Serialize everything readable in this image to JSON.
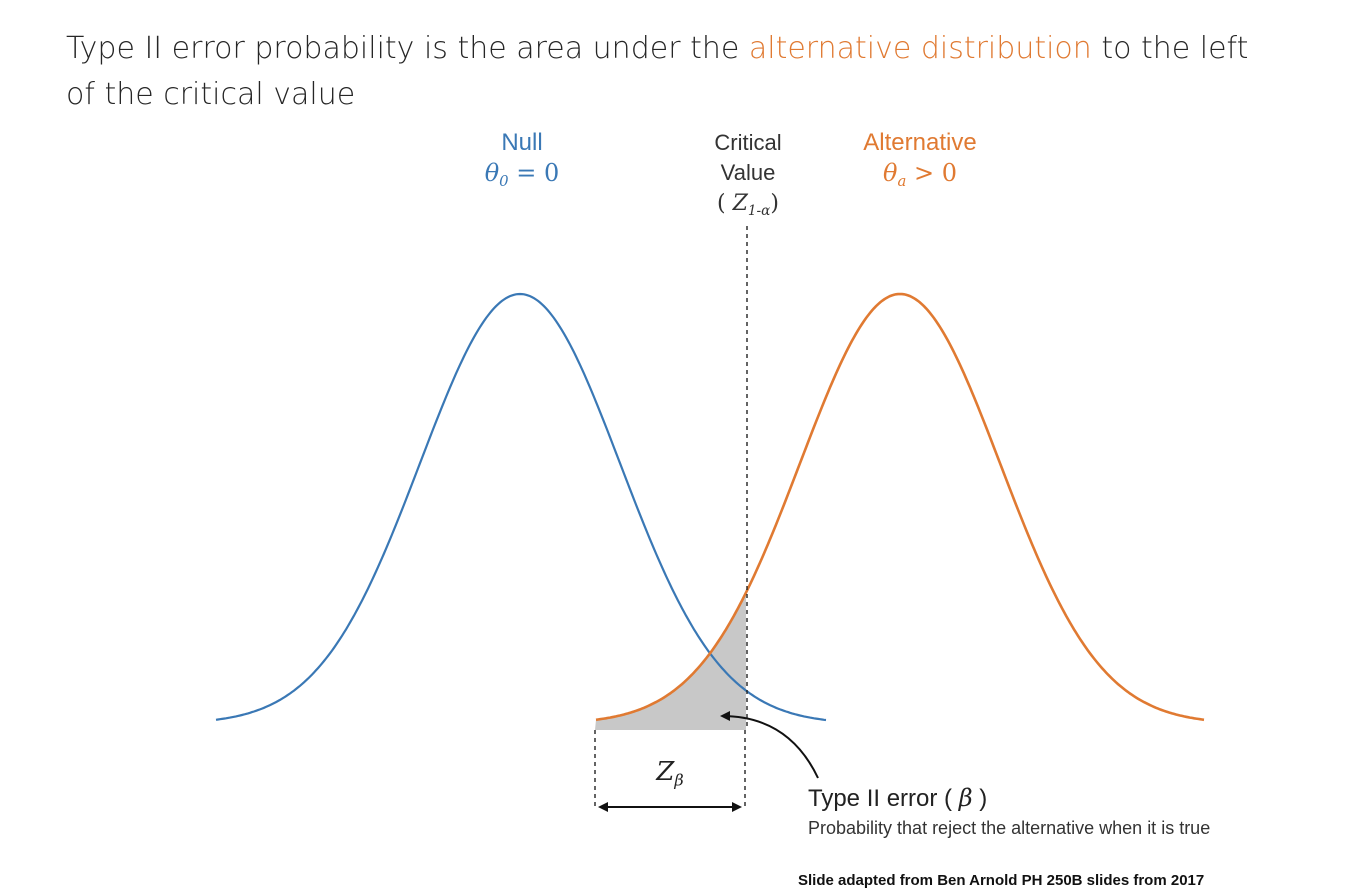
{
  "slide": {
    "title_before": "Type II error probability is the area under the ",
    "title_highlight": "alternative distribution",
    "title_after": " to the left of the critical value",
    "credit": "Slide adapted from Ben Arnold  PH 250B slides from 2017"
  },
  "null_label": {
    "name": "Null",
    "theta": "θ",
    "sub": "0",
    "rel": " = 0"
  },
  "alt_label": {
    "name": "Alternative",
    "theta": "θ",
    "sub": "a",
    "rel": " > 0"
  },
  "critical": {
    "line1": "Critical",
    "line2": "Value",
    "open": "( ",
    "z": "Z",
    "sub": "1-α",
    "close": ")"
  },
  "z_beta": {
    "z": "Z",
    "sub": "β"
  },
  "error": {
    "title_prefix": "Type II error ( ",
    "beta": "β",
    "title_suffix": " )",
    "subtitle": "Probability that reject the alternative when it is true"
  },
  "colors": {
    "null": "#3a78b5",
    "alternative": "#e07a32",
    "shade": "#c8c8c8",
    "text": "#262626"
  }
}
